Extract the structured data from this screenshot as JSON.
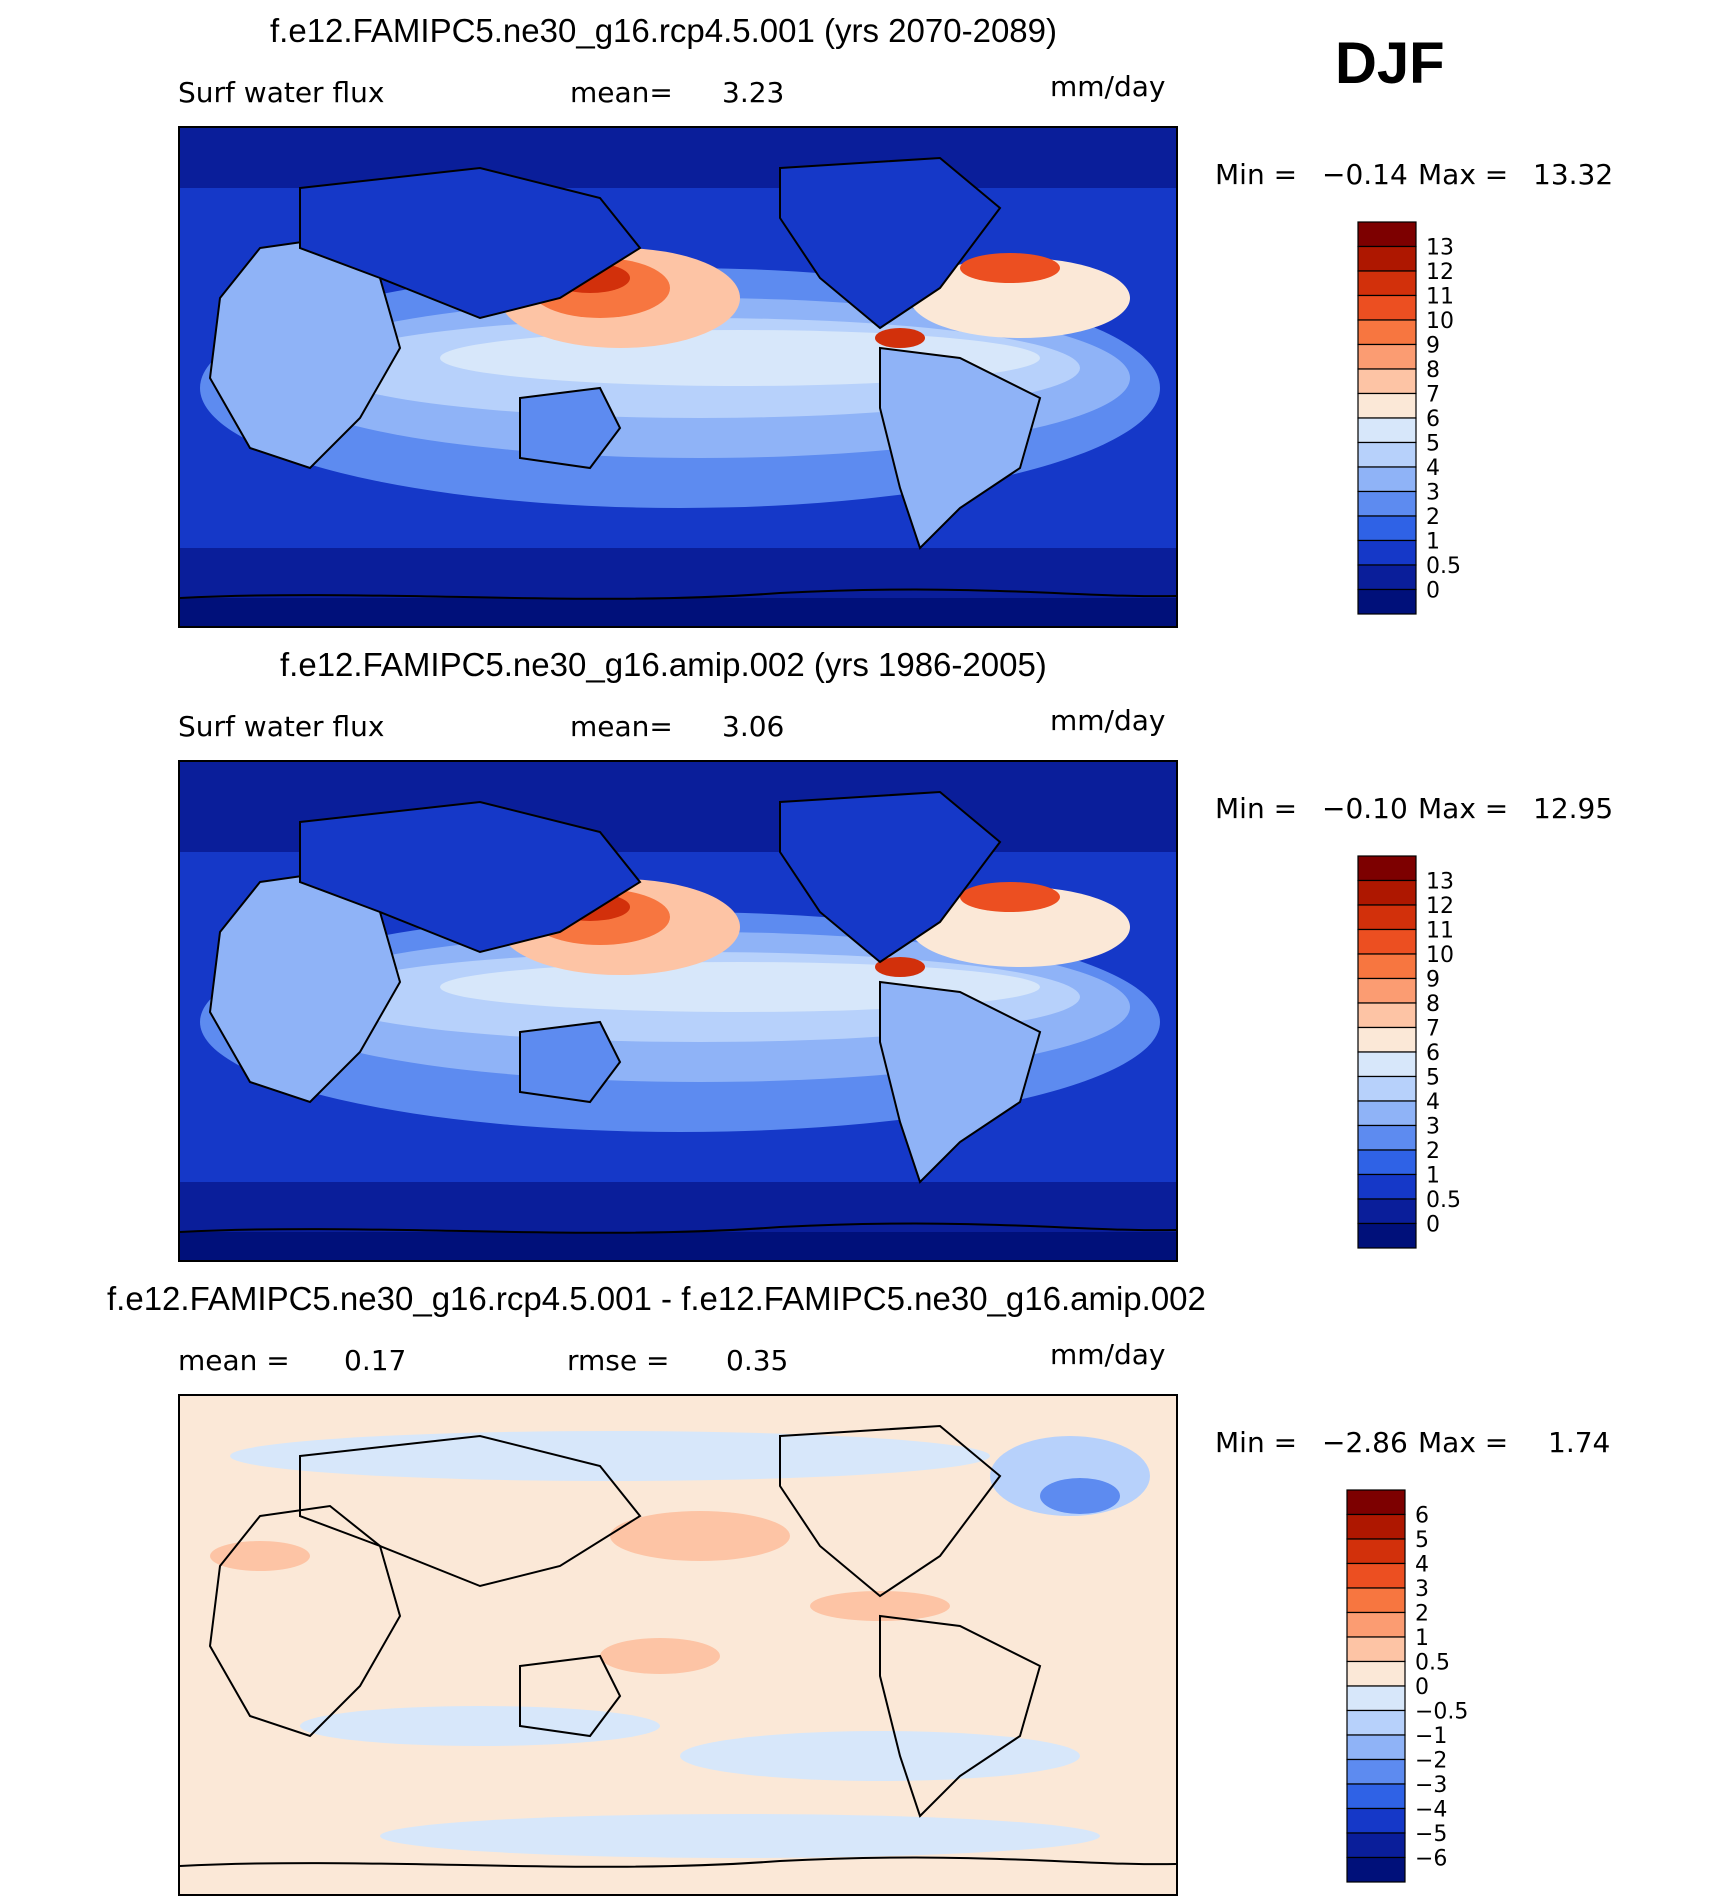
{
  "season": "DJF",
  "colors": {
    "ocean_blue": "#1f4fd6",
    "land_outline": "#000000"
  },
  "panels": [
    {
      "title": "f.e12.FAMIPC5.ne30_g16.rcp4.5.001 (yrs 2070-2089)",
      "variable": "Surf water flux",
      "stat1": "mean=",
      "stat1_value": "3.23",
      "stat2": "",
      "stat2_value": "",
      "units": "mm/day",
      "min_label": "Min =",
      "min_value": "−0.14",
      "max_label": "Max =",
      "max_value": "13.32",
      "levels": [
        "13",
        "12",
        "11",
        "10",
        "9",
        "8",
        "7",
        "6",
        "5",
        "4",
        "3",
        "2",
        "1",
        "0.5",
        "0"
      ],
      "colors": [
        "#7d0000",
        "#ae1700",
        "#d2300b",
        "#ec4f21",
        "#f77640",
        "#fb9c72",
        "#fdc4a5",
        "#fbe8d7",
        "#d7e7fa",
        "#b7d1fb",
        "#8fb3f7",
        "#5d8bf0",
        "#2f62e6",
        "#1538c8",
        "#0a1e9a",
        "#00107a"
      ]
    },
    {
      "title": "f.e12.FAMIPC5.ne30_g16.amip.002 (yrs 1986-2005)",
      "variable": "Surf water flux",
      "stat1": "mean=",
      "stat1_value": "3.06",
      "stat2": "",
      "stat2_value": "",
      "units": "mm/day",
      "min_label": "Min =",
      "min_value": "−0.10",
      "max_label": "Max =",
      "max_value": "12.95",
      "levels": [
        "13",
        "12",
        "11",
        "10",
        "9",
        "8",
        "7",
        "6",
        "5",
        "4",
        "3",
        "2",
        "1",
        "0.5",
        "0"
      ],
      "colors": [
        "#7d0000",
        "#ae1700",
        "#d2300b",
        "#ec4f21",
        "#f77640",
        "#fb9c72",
        "#fdc4a5",
        "#fbe8d7",
        "#d7e7fa",
        "#b7d1fb",
        "#8fb3f7",
        "#5d8bf0",
        "#2f62e6",
        "#1538c8",
        "#0a1e9a",
        "#00107a"
      ]
    },
    {
      "title": "f.e12.FAMIPC5.ne30_g16.rcp4.5.001 - f.e12.FAMIPC5.ne30_g16.amip.002",
      "variable": "",
      "stat1": "mean =",
      "stat1_value": "0.17",
      "stat2": "rmse =",
      "stat2_value": "0.35",
      "units": "mm/day",
      "min_label": "Min =",
      "min_value": "−2.86",
      "max_label": "Max =",
      "max_value": "1.74",
      "levels": [
        "6",
        "5",
        "4",
        "3",
        "2",
        "1",
        "0.5",
        "0",
        "−0.5",
        "−1",
        "−2",
        "−3",
        "−4",
        "−5",
        "−6"
      ],
      "colors": [
        "#7d0000",
        "#ae1700",
        "#d2300b",
        "#ec4f21",
        "#f77640",
        "#fb9c72",
        "#fdc4a5",
        "#fbe8d7",
        "#d7e7fa",
        "#b7d1fb",
        "#8fb3f7",
        "#5d8bf0",
        "#2f62e6",
        "#1538c8",
        "#0a1e9a",
        "#00107a"
      ]
    }
  ]
}
